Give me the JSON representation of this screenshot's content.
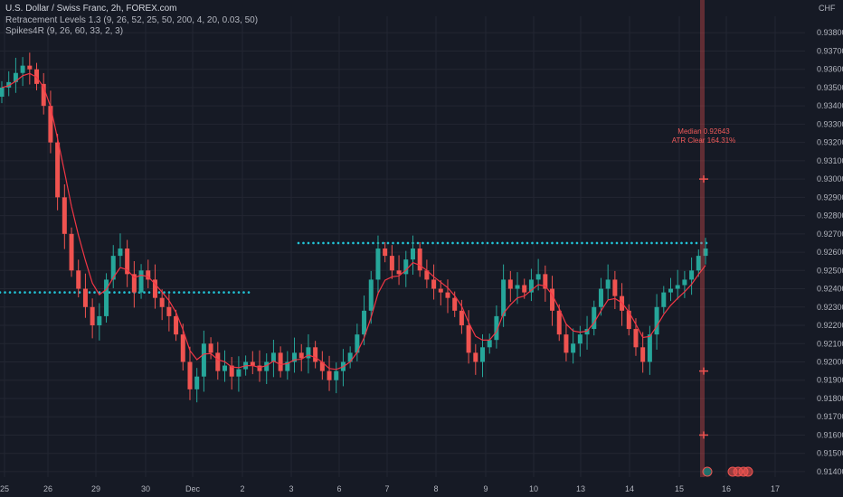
{
  "legend": {
    "title": "U.S. Dollar / Swiss Franc, 2h, FOREX.com",
    "indicator1": "Retracement Levels 1.3 (9, 26, 52, 25, 50, 200, 4, 20, 0.03, 50)",
    "indicator2": "Spikes4R (9, 26, 60, 33, 2, 3)"
  },
  "currency": "CHF",
  "annotation": {
    "median": "Median 0.92643",
    "atr": "ATR Clear 164.31%"
  },
  "colors": {
    "background": "#161a25",
    "up": "#26a69a",
    "down": "#ef5350",
    "line": "#f23645",
    "dots": "#22c3d6",
    "grid": "#232632"
  },
  "chart_data": {
    "type": "candlestick",
    "y_axis_ticks": [
      "0.93800",
      "0.93700",
      "0.93600",
      "0.93500",
      "0.93400",
      "0.93300",
      "0.93200",
      "0.93100",
      "0.93000",
      "0.92900",
      "0.92800",
      "0.92700",
      "0.92600",
      "0.92500",
      "0.92400",
      "0.92300",
      "0.92200",
      "0.92100",
      "0.92000",
      "0.91900",
      "0.91800",
      "0.91700",
      "0.91600",
      "0.91500",
      "0.91400"
    ],
    "ylim": [
      0.9137,
      0.9389
    ],
    "x_axis_ticks": [
      "25",
      "26",
      "29",
      "30",
      "Dec",
      "2",
      "3",
      "6",
      "7",
      "8",
      "9",
      "10",
      "13",
      "14",
      "15",
      "16",
      "17"
    ],
    "levels": [
      {
        "value": 0.9238,
        "x_start": "25",
        "x_end": "2",
        "style": "dotted"
      },
      {
        "value": 0.9265,
        "x_start": "3",
        "x_end": "15",
        "style": "dotted"
      }
    ],
    "markers": [
      0.93,
      0.9195,
      0.916
    ],
    "close_series": [
      0.935,
      0.9353,
      0.9358,
      0.9362,
      0.936,
      0.9352,
      0.934,
      0.932,
      0.929,
      0.927,
      0.925,
      0.924,
      0.923,
      0.922,
      0.9225,
      0.9245,
      0.9258,
      0.9262,
      0.9248,
      0.9238,
      0.925,
      0.9245,
      0.9235,
      0.923,
      0.9225,
      0.9215,
      0.92,
      0.9185,
      0.9192,
      0.921,
      0.9205,
      0.9195,
      0.9198,
      0.9192,
      0.9196,
      0.92,
      0.9198,
      0.9195,
      0.92,
      0.9205,
      0.9195,
      0.92,
      0.9205,
      0.9202,
      0.9208,
      0.92,
      0.9195,
      0.919,
      0.9195,
      0.92,
      0.9205,
      0.9215,
      0.9228,
      0.9245,
      0.9262,
      0.9258,
      0.925,
      0.9248,
      0.9256,
      0.9262,
      0.925,
      0.9245,
      0.924,
      0.9238,
      0.9235,
      0.9228,
      0.922,
      0.9205,
      0.92,
      0.9208,
      0.9212,
      0.9225,
      0.9245,
      0.924,
      0.9242,
      0.9238,
      0.9245,
      0.9248,
      0.924,
      0.9228,
      0.9215,
      0.9205,
      0.921,
      0.9215,
      0.9218,
      0.923,
      0.924,
      0.9245,
      0.9236,
      0.9228,
      0.9218,
      0.9208,
      0.92,
      0.9215,
      0.923,
      0.9238,
      0.924,
      0.9242,
      0.9245,
      0.925,
      0.9258,
      0.9262
    ]
  }
}
